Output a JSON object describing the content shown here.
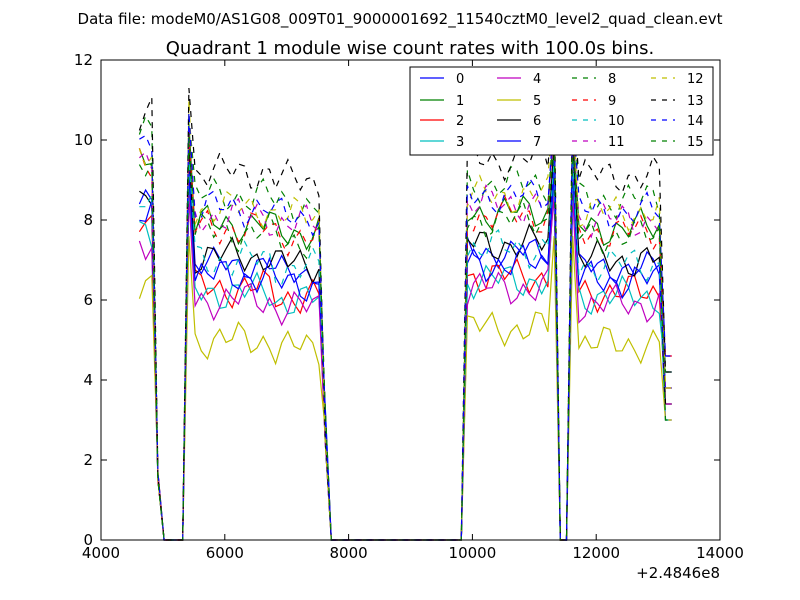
{
  "figure": {
    "supertitle": "Data file: modeM0/AS1G08_009T01_9000001692_11540cztM0_level2_quad_clean.evt",
    "title": "Quadrant 1 module wise count rates with 100.0s bins.",
    "x_offset_label": "+2.4846e8"
  },
  "chart_data": {
    "type": "line",
    "title": "Quadrant 1 module wise count rates with 100.0s bins.",
    "xlabel": "",
    "ylabel": "",
    "xlim": [
      4000,
      14000
    ],
    "ylim": [
      0,
      12
    ],
    "x_offset": 248460000,
    "xticks": [
      4000,
      6000,
      8000,
      10000,
      12000,
      14000
    ],
    "yticks": [
      0,
      2,
      4,
      6,
      8,
      10,
      12
    ],
    "xtick_labels": [
      "4000",
      "6000",
      "8000",
      "10000",
      "12000",
      "14000"
    ],
    "ytick_labels": [
      "0",
      "2",
      "4",
      "6",
      "8",
      "10",
      "12"
    ],
    "grid": false,
    "legend_position": "top-right",
    "legend_columns": 4,
    "x": [
      4620,
      4720,
      4820,
      4920,
      5020,
      5120,
      5220,
      5320,
      5420,
      5520,
      5620,
      5720,
      5820,
      5920,
      6020,
      6120,
      6220,
      6320,
      6420,
      6520,
      6620,
      6720,
      6820,
      6920,
      7020,
      7120,
      7220,
      7320,
      7420,
      7520,
      7620,
      7720,
      7820,
      7920,
      8020,
      8120,
      8220,
      8320,
      8420,
      8520,
      8620,
      8720,
      8820,
      8920,
      9020,
      9120,
      9220,
      9320,
      9420,
      9520,
      9620,
      9720,
      9820,
      9920,
      10020,
      10120,
      10220,
      10320,
      10420,
      10520,
      10620,
      10720,
      10820,
      10920,
      11020,
      11120,
      11220,
      11320,
      11420,
      11520,
      11620,
      11720,
      11820,
      11920,
      12020,
      12120,
      12220,
      12320,
      12420,
      12520,
      12620,
      12720,
      12820,
      12920,
      13020,
      13120,
      13220
    ],
    "series": [
      {
        "name": "0",
        "color": "#0000ff",
        "dash": "solid",
        "baseline": 6.9,
        "peak": 9.7,
        "amp": 0.25
      },
      {
        "name": "1",
        "color": "#008000",
        "dash": "solid",
        "baseline": 7.9,
        "peak": 10.4,
        "amp": 0.3
      },
      {
        "name": "2",
        "color": "#ff0000",
        "dash": "solid",
        "baseline": 6.3,
        "peak": 9.0,
        "amp": 0.3
      },
      {
        "name": "3",
        "color": "#00bfbf",
        "dash": "solid",
        "baseline": 6.2,
        "peak": 8.8,
        "amp": 0.3
      },
      {
        "name": "4",
        "color": "#bf00bf",
        "dash": "solid",
        "baseline": 6.0,
        "peak": 8.6,
        "amp": 0.3
      },
      {
        "name": "5",
        "color": "#bfbf00",
        "dash": "solid",
        "baseline": 5.0,
        "peak": 7.6,
        "amp": 0.3
      },
      {
        "name": "6",
        "color": "#000000",
        "dash": "solid",
        "baseline": 7.1,
        "peak": 9.9,
        "amp": 0.3
      },
      {
        "name": "7",
        "color": "#0000ff",
        "dash": "solid",
        "baseline": 6.6,
        "peak": 9.2,
        "amp": 0.3
      },
      {
        "name": "8",
        "color": "#008000",
        "dash": "dashed",
        "baseline": 8.6,
        "peak": 10.6,
        "amp": 0.3
      },
      {
        "name": "9",
        "color": "#ff0000",
        "dash": "dashed",
        "baseline": 7.8,
        "peak": 10.1,
        "amp": 0.3
      },
      {
        "name": "10",
        "color": "#00bfbf",
        "dash": "dashed",
        "baseline": 7.0,
        "peak": 9.5,
        "amp": 0.3
      },
      {
        "name": "11",
        "color": "#bf00bf",
        "dash": "dashed",
        "baseline": 8.1,
        "peak": 10.3,
        "amp": 0.3
      },
      {
        "name": "12",
        "color": "#bfbf00",
        "dash": "dashed",
        "baseline": 8.3,
        "peak": 11.0,
        "amp": 0.3
      },
      {
        "name": "13",
        "color": "#000000",
        "dash": "dashed",
        "baseline": 9.2,
        "peak": 11.3,
        "amp": 0.3
      },
      {
        "name": "14",
        "color": "#0000ff",
        "dash": "dashed",
        "baseline": 8.3,
        "peak": 10.7,
        "amp": 0.3
      },
      {
        "name": "15",
        "color": "#008000",
        "dash": "dashed",
        "baseline": 7.7,
        "peak": 10.1,
        "amp": 0.3
      }
    ]
  }
}
